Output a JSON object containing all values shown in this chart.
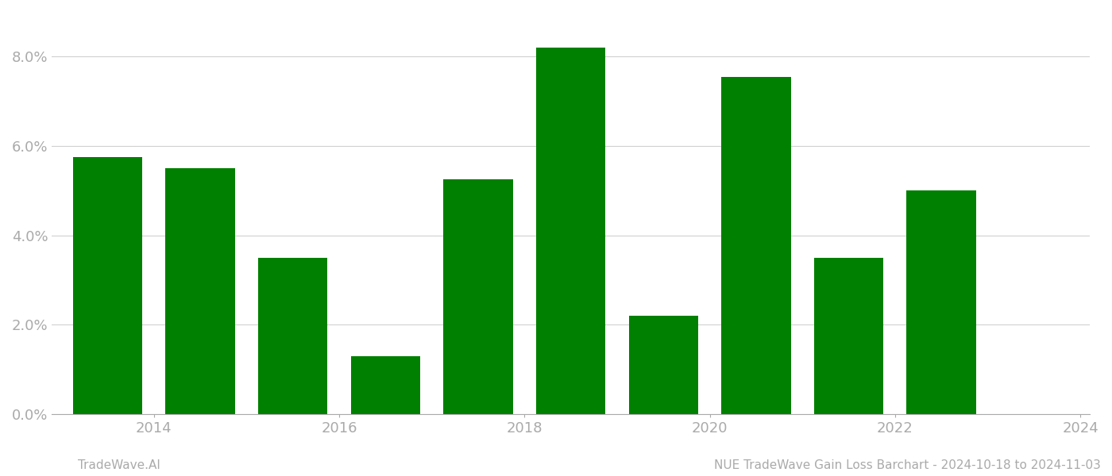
{
  "years": [
    2014,
    2015,
    2016,
    2017,
    2018,
    2019,
    2020,
    2021,
    2022,
    2023
  ],
  "values": [
    0.0575,
    0.055,
    0.035,
    0.013,
    0.0525,
    0.082,
    0.022,
    0.0755,
    0.035,
    0.05
  ],
  "bar_color": "#008000",
  "background_color": "#ffffff",
  "footer_left": "TradeWave.AI",
  "footer_right": "NUE TradeWave Gain Loss Barchart - 2024-10-18 to 2024-11-03",
  "ylim": [
    0.0,
    0.09
  ],
  "yticks": [
    0.0,
    0.02,
    0.04,
    0.06,
    0.08
  ],
  "xtick_positions": [
    2014.5,
    2016.5,
    2018.5,
    2020.5,
    2022.5,
    2024.5
  ],
  "xtick_labels": [
    "2014",
    "2016",
    "2018",
    "2020",
    "2022",
    "2024"
  ],
  "xlim": [
    2013.4,
    2024.6
  ],
  "grid_color": "#d0d0d0",
  "tick_color": "#aaaaaa",
  "footer_fontsize": 11,
  "tick_fontsize": 13,
  "bar_width": 0.75
}
